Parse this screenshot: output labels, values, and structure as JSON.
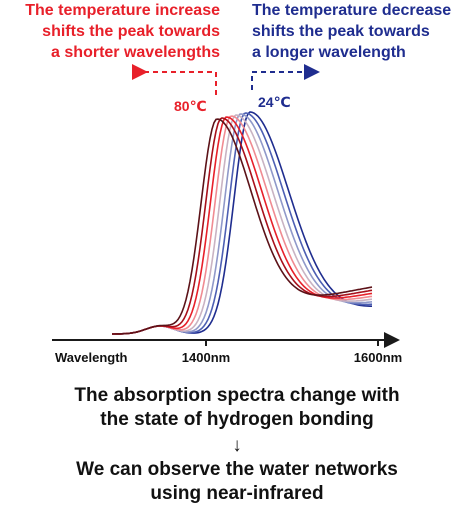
{
  "notes": {
    "increase": {
      "lines": [
        "The temperature increase",
        "shifts the peak towards",
        "a shorter wavelengths"
      ],
      "color": "#e8202a"
    },
    "decrease": {
      "lines": [
        "The temperature decrease",
        "shifts the peak towards",
        "a longer wavelength"
      ],
      "color": "#1f2d8f"
    }
  },
  "caption": {
    "top": [
      "The absorption spectra change with",
      "the state of hydrogen bonding"
    ],
    "arrow": "↓",
    "bottom": [
      "We can observe the water networks",
      "using near-infrared"
    ]
  },
  "chart_data": {
    "type": "line",
    "xlabel": "Wavelength",
    "x_ticks": [
      1400,
      1600
    ],
    "x_tick_labels": [
      "1400nm",
      "1600nm"
    ],
    "temperature_labels": {
      "hot": "80℃",
      "cold": "24℃"
    },
    "series_colors": [
      "#1f2d8f",
      "#4d5fb3",
      "#8f98c9",
      "#c9b3c3",
      "#f08b92",
      "#e8202a",
      "#a8101b",
      "#5c1218"
    ],
    "axis_color": "#1a1a1a"
  }
}
